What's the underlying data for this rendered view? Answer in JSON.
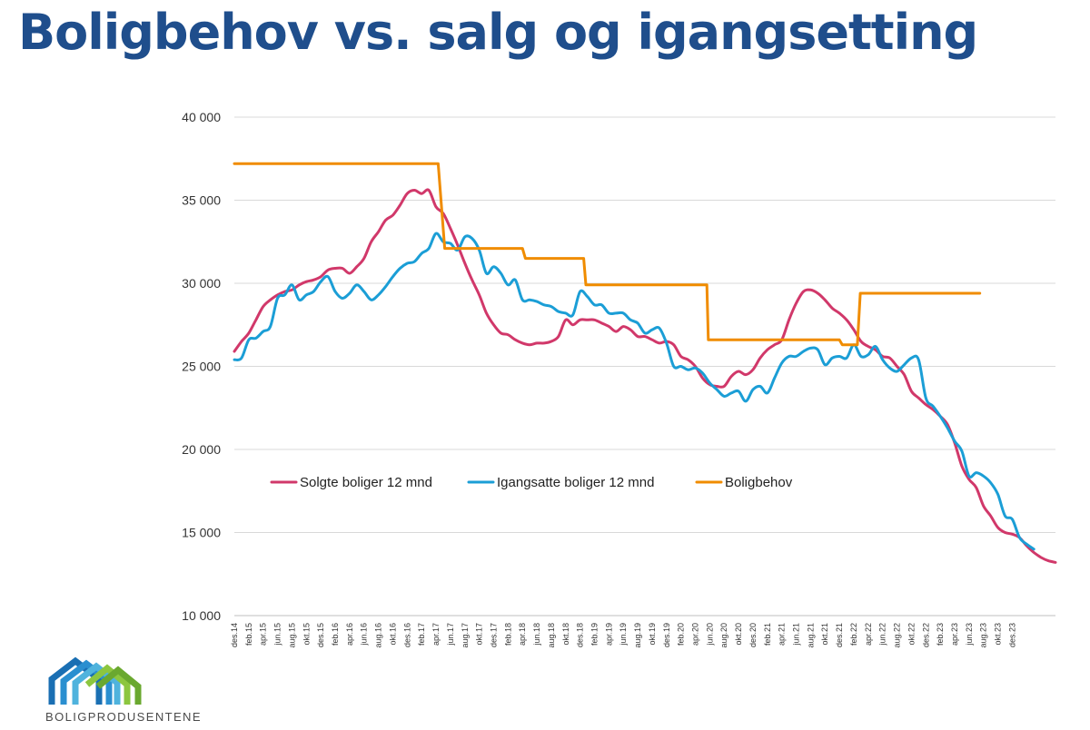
{
  "title": "Boligbehov vs. salg og igangsetting",
  "logo": {
    "text": "BOLIGPRODUSENTENE"
  },
  "colors": {
    "title": "#1f4e8c",
    "solgte": "#d1386a",
    "igangsatte": "#1b9ed6",
    "boligbehov": "#f08c00"
  },
  "chart_data": {
    "type": "line",
    "title": "Boligbehov vs. salg og igangsetting",
    "xlabel": "",
    "ylabel": "",
    "ylim": [
      10000,
      40000
    ],
    "yticks": [
      {
        "value": 10000,
        "label": "10 000"
      },
      {
        "value": 15000,
        "label": "15 000"
      },
      {
        "value": 20000,
        "label": "20 000"
      },
      {
        "value": 25000,
        "label": "25 000"
      },
      {
        "value": 30000,
        "label": "30 000"
      },
      {
        "value": 35000,
        "label": "35 000"
      },
      {
        "value": 40000,
        "label": "40 000"
      }
    ],
    "grid": true,
    "legend_position": "center-left",
    "x_tick_labels": [
      "des.14",
      "feb.15",
      "apr.15",
      "jun.15",
      "aug.15",
      "okt.15",
      "des.15",
      "feb.16",
      "apr.16",
      "jun.16",
      "aug.16",
      "okt.16",
      "des.16",
      "feb.17",
      "apr.17",
      "jun.17",
      "aug.17",
      "okt.17",
      "des.17",
      "feb.18",
      "apr.18",
      "jun.18",
      "aug.18",
      "okt.18",
      "des.18",
      "feb.19",
      "apr.19",
      "jun.19",
      "aug.19",
      "okt.19",
      "des.19",
      "feb.20",
      "apr.20",
      "jun.20",
      "aug.20",
      "okt.20",
      "des.20",
      "feb.21",
      "apr.21",
      "jun.21",
      "aug.21",
      "okt.21",
      "des.21",
      "feb.22",
      "apr.22",
      "jun.22",
      "aug.22",
      "okt.22",
      "des.22",
      "feb.23",
      "apr.23",
      "jun.23",
      "aug.23",
      "okt.23",
      "des.23"
    ],
    "series": [
      {
        "name": "Solgte boliger 12 mnd",
        "color": "#d1386a",
        "points": [
          [
            0,
            25900
          ],
          [
            1,
            26500
          ],
          [
            2,
            27000
          ],
          [
            3,
            27800
          ],
          [
            4,
            28600
          ],
          [
            5,
            29000
          ],
          [
            6,
            29300
          ],
          [
            7,
            29500
          ],
          [
            8,
            29600
          ],
          [
            9,
            29900
          ],
          [
            10,
            30100
          ],
          [
            11,
            30200
          ],
          [
            12,
            30400
          ],
          [
            13,
            30800
          ],
          [
            14,
            30900
          ],
          [
            15,
            30900
          ],
          [
            16,
            30600
          ],
          [
            17,
            31000
          ],
          [
            18,
            31500
          ],
          [
            19,
            32500
          ],
          [
            20,
            33100
          ],
          [
            21,
            33800
          ],
          [
            22,
            34100
          ],
          [
            23,
            34700
          ],
          [
            24,
            35400
          ],
          [
            25,
            35600
          ],
          [
            26,
            35400
          ],
          [
            27,
            35600
          ],
          [
            28,
            34600
          ],
          [
            29,
            34200
          ],
          [
            30,
            33300
          ],
          [
            31,
            32300
          ],
          [
            32,
            31200
          ],
          [
            33,
            30200
          ],
          [
            34,
            29300
          ],
          [
            35,
            28200
          ],
          [
            36,
            27500
          ],
          [
            37,
            27000
          ],
          [
            38,
            26900
          ],
          [
            39,
            26600
          ],
          [
            40,
            26400
          ],
          [
            41,
            26300
          ],
          [
            42,
            26400
          ],
          [
            43,
            26400
          ],
          [
            44,
            26500
          ],
          [
            45,
            26800
          ],
          [
            46,
            27800
          ],
          [
            47,
            27500
          ],
          [
            48,
            27800
          ],
          [
            49,
            27800
          ],
          [
            50,
            27800
          ],
          [
            51,
            27600
          ],
          [
            52,
            27400
          ],
          [
            53,
            27100
          ],
          [
            54,
            27400
          ],
          [
            55,
            27200
          ],
          [
            56,
            26800
          ],
          [
            57,
            26800
          ],
          [
            58,
            26600
          ],
          [
            59,
            26400
          ],
          [
            60,
            26500
          ],
          [
            61,
            26300
          ],
          [
            62,
            25600
          ],
          [
            63,
            25400
          ],
          [
            64,
            25000
          ],
          [
            65,
            24300
          ],
          [
            66,
            23900
          ],
          [
            67,
            23800
          ],
          [
            68,
            23800
          ],
          [
            69,
            24400
          ],
          [
            70,
            24700
          ],
          [
            71,
            24500
          ],
          [
            72,
            24800
          ],
          [
            73,
            25500
          ],
          [
            74,
            26000
          ],
          [
            75,
            26300
          ],
          [
            76,
            26600
          ],
          [
            77,
            27800
          ],
          [
            78,
            28800
          ],
          [
            79,
            29500
          ],
          [
            80,
            29600
          ],
          [
            81,
            29400
          ],
          [
            82,
            29000
          ],
          [
            83,
            28500
          ],
          [
            84,
            28200
          ],
          [
            85,
            27800
          ],
          [
            86,
            27200
          ],
          [
            87,
            26500
          ],
          [
            88,
            26200
          ],
          [
            89,
            26000
          ],
          [
            90,
            25600
          ],
          [
            91,
            25500
          ],
          [
            92,
            25000
          ],
          [
            93,
            24500
          ],
          [
            94,
            23500
          ],
          [
            95,
            23100
          ],
          [
            96,
            22700
          ],
          [
            97,
            22400
          ],
          [
            98,
            22000
          ],
          [
            99,
            21500
          ],
          [
            100,
            20400
          ],
          [
            101,
            19000
          ],
          [
            102,
            18200
          ],
          [
            103,
            17700
          ],
          [
            104,
            16600
          ],
          [
            105,
            16000
          ],
          [
            106,
            15300
          ],
          [
            107,
            15000
          ],
          [
            108,
            14900
          ],
          [
            109,
            14700
          ],
          [
            110,
            14200
          ],
          [
            111,
            13800
          ],
          [
            112,
            13500
          ],
          [
            113,
            13300
          ],
          [
            114,
            13200
          ]
        ]
      },
      {
        "name": "Igangsatte boliger 12 mnd",
        "color": "#1b9ed6",
        "points": [
          [
            0,
            25400
          ],
          [
            1,
            25500
          ],
          [
            2,
            26600
          ],
          [
            3,
            26700
          ],
          [
            4,
            27100
          ],
          [
            5,
            27400
          ],
          [
            6,
            29100
          ],
          [
            7,
            29300
          ],
          [
            8,
            29900
          ],
          [
            9,
            29000
          ],
          [
            10,
            29300
          ],
          [
            11,
            29500
          ],
          [
            12,
            30100
          ],
          [
            13,
            30400
          ],
          [
            14,
            29500
          ],
          [
            15,
            29100
          ],
          [
            16,
            29400
          ],
          [
            17,
            29900
          ],
          [
            18,
            29500
          ],
          [
            19,
            29000
          ],
          [
            20,
            29300
          ],
          [
            21,
            29800
          ],
          [
            22,
            30400
          ],
          [
            23,
            30900
          ],
          [
            24,
            31200
          ],
          [
            25,
            31300
          ],
          [
            26,
            31800
          ],
          [
            27,
            32100
          ],
          [
            28,
            33000
          ],
          [
            29,
            32500
          ],
          [
            30,
            32400
          ],
          [
            31,
            32000
          ],
          [
            32,
            32800
          ],
          [
            33,
            32700
          ],
          [
            34,
            32000
          ],
          [
            35,
            30600
          ],
          [
            36,
            31000
          ],
          [
            37,
            30600
          ],
          [
            38,
            29900
          ],
          [
            39,
            30200
          ],
          [
            40,
            29000
          ],
          [
            41,
            29000
          ],
          [
            42,
            28900
          ],
          [
            43,
            28700
          ],
          [
            44,
            28600
          ],
          [
            45,
            28300
          ],
          [
            46,
            28200
          ],
          [
            47,
            28100
          ],
          [
            48,
            29500
          ],
          [
            49,
            29200
          ],
          [
            50,
            28700
          ],
          [
            51,
            28700
          ],
          [
            52,
            28200
          ],
          [
            53,
            28200
          ],
          [
            54,
            28200
          ],
          [
            55,
            27800
          ],
          [
            56,
            27600
          ],
          [
            57,
            27000
          ],
          [
            58,
            27200
          ],
          [
            59,
            27300
          ],
          [
            60,
            26400
          ],
          [
            61,
            25000
          ],
          [
            62,
            25000
          ],
          [
            63,
            24800
          ],
          [
            64,
            24900
          ],
          [
            65,
            24600
          ],
          [
            66,
            24000
          ],
          [
            67,
            23600
          ],
          [
            68,
            23200
          ],
          [
            69,
            23400
          ],
          [
            70,
            23500
          ],
          [
            71,
            22900
          ],
          [
            72,
            23600
          ],
          [
            73,
            23800
          ],
          [
            74,
            23400
          ],
          [
            75,
            24300
          ],
          [
            76,
            25200
          ],
          [
            77,
            25600
          ],
          [
            78,
            25600
          ],
          [
            79,
            25900
          ],
          [
            80,
            26100
          ],
          [
            81,
            26000
          ],
          [
            82,
            25100
          ],
          [
            83,
            25500
          ],
          [
            84,
            25600
          ],
          [
            85,
            25500
          ],
          [
            86,
            26300
          ],
          [
            87,
            25600
          ],
          [
            88,
            25700
          ],
          [
            89,
            26200
          ],
          [
            90,
            25400
          ],
          [
            91,
            24900
          ],
          [
            92,
            24700
          ],
          [
            93,
            25100
          ],
          [
            94,
            25500
          ],
          [
            95,
            25400
          ],
          [
            96,
            23100
          ],
          [
            97,
            22600
          ],
          [
            98,
            22000
          ],
          [
            99,
            21300
          ],
          [
            100,
            20500
          ],
          [
            101,
            19900
          ],
          [
            102,
            18400
          ],
          [
            103,
            18600
          ],
          [
            104,
            18400
          ],
          [
            105,
            18000
          ],
          [
            106,
            17300
          ],
          [
            107,
            16000
          ],
          [
            108,
            15800
          ],
          [
            109,
            14700
          ],
          [
            110,
            14300
          ],
          [
            111,
            14000
          ]
        ]
      },
      {
        "name": "Boligbehov",
        "color": "#f08c00",
        "points": [
          [
            0,
            37200
          ],
          [
            28.3,
            37200
          ],
          [
            29.2,
            32100
          ],
          [
            40,
            32100
          ],
          [
            40.4,
            31500
          ],
          [
            48.5,
            31500
          ],
          [
            48.8,
            29900
          ],
          [
            65.6,
            29900
          ],
          [
            65.8,
            26600
          ],
          [
            84,
            26600
          ],
          [
            84.4,
            26300
          ],
          [
            86.5,
            26300
          ],
          [
            86.9,
            29400
          ],
          [
            103.5,
            29400
          ]
        ]
      }
    ]
  }
}
